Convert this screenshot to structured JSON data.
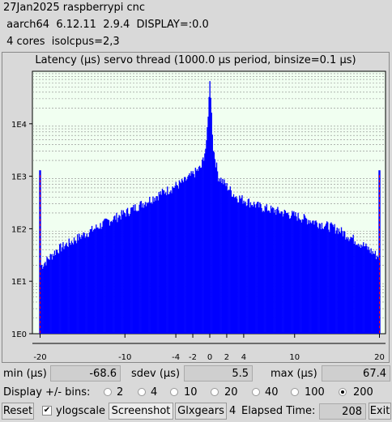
{
  "header": {
    "line1": "27Jan2025 raspberrypi cnc",
    "line2": " aarch64  6.12.11  2.9.4  DISPLAY=:0.0",
    "line3": " 4 cores  isolcpus=2,3"
  },
  "chart_data": {
    "type": "bar",
    "title": "Latency (µs) servo thread (1000.0 µs period, binsize=0.1 µs)",
    "xlabel": "",
    "ylabel": "",
    "yscale": "log",
    "xlim": [
      -20,
      20
    ],
    "ylim": [
      1,
      100000
    ],
    "grid": true,
    "x_ticks": [
      "-20",
      "-10",
      "-4",
      "-2",
      "0",
      "2",
      "4",
      "10",
      "20"
    ],
    "x_tick_values": [
      -20,
      -10,
      -4,
      -2,
      0,
      2,
      4,
      10,
      20
    ],
    "y_ticks": [
      "1E0",
      "1E1",
      "1E2",
      "1E3",
      "1E4"
    ],
    "y_tick_values": [
      1,
      10,
      100,
      1000,
      10000
    ],
    "color": "#0000ff",
    "edge_marker_color": "#ff0000",
    "edge_bins": [
      {
        "x": -20,
        "value": 1300
      },
      {
        "x": 20,
        "value": 1300
      }
    ],
    "envelope_points": [
      {
        "x": -19.8,
        "value": 20
      },
      {
        "x": -18,
        "value": 40
      },
      {
        "x": -15,
        "value": 75
      },
      {
        "x": -12,
        "value": 140
      },
      {
        "x": -10,
        "value": 200
      },
      {
        "x": -6,
        "value": 450
      },
      {
        "x": -3,
        "value": 800
      },
      {
        "x": -1,
        "value": 1500
      },
      {
        "x": -0.4,
        "value": 4000
      },
      {
        "x": 0,
        "value": 65000
      },
      {
        "x": 0.4,
        "value": 3500
      },
      {
        "x": 1,
        "value": 1000
      },
      {
        "x": 3,
        "value": 420
      },
      {
        "x": 6,
        "value": 260
      },
      {
        "x": 10,
        "value": 180
      },
      {
        "x": 15,
        "value": 100
      },
      {
        "x": 18,
        "value": 50
      },
      {
        "x": 19.8,
        "value": 30
      }
    ]
  },
  "stats": {
    "min_label": "min (µs)",
    "min_value": "-68.6",
    "sdev_label": "sdev (µs)",
    "sdev_value": "5.5",
    "max_label": "max (µs)",
    "max_value": "67.4"
  },
  "bins": {
    "label": "Display +/- bins:",
    "options": [
      "2",
      "4",
      "10",
      "20",
      "40",
      "100",
      "200"
    ],
    "selected": "200"
  },
  "toolbar": {
    "reset_label": "Reset",
    "ylogscale_label": "ylogscale",
    "ylogscale_checked": true,
    "screenshot_label": "Screenshot",
    "glxgears_label": "Glxgears",
    "glxgears_count": "4",
    "elapsed_label": "Elapsed Time:",
    "elapsed_value": "208",
    "exit_label": "Exit"
  }
}
